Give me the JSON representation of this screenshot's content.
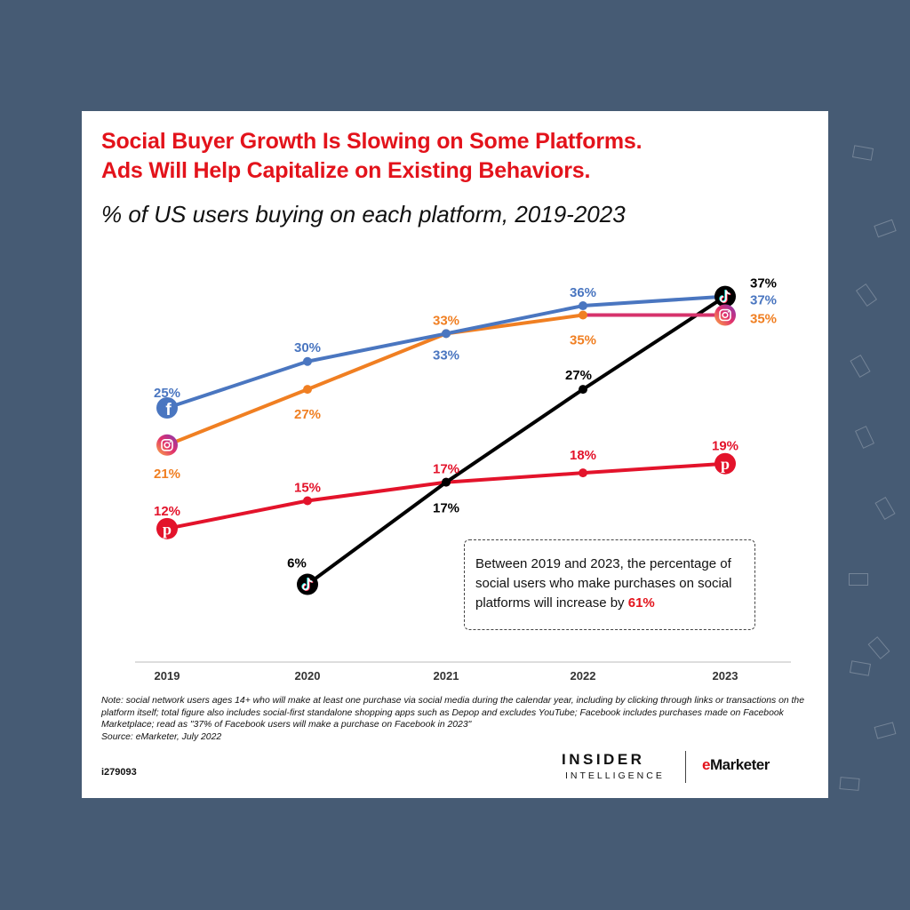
{
  "title_line1": "Social Buyer Growth Is Slowing on Some Platforms.",
  "title_line2": "Ads Will Help Capitalize on Existing Behaviors.",
  "subtitle": "% of US users buying on each platform, 2019-2023",
  "callout": {
    "text": "Between 2019 and 2023, the percentage of social users who make purchases on social platforms will increase by",
    "highlight": "61%"
  },
  "note": "Note: social network users ages 14+ who will make at least one purchase via social media during the calendar year, including by clicking through links or transactions on the platform itself; total figure also includes social-first standalone shopping apps such as Depop and excludes YouTube; Facebook includes purchases made on Facebook Marketplace; read as \"37% of Facebook users will make a purchase on Facebook in 2023\"",
  "source": "Source: eMarketer, July 2022",
  "chart_id": "i279093",
  "brand": {
    "insider": "INSIDER",
    "intelligence": "INTELLIGENCE",
    "emarketer_e": "e",
    "emarketer_rest": "Marketer"
  },
  "chart_data": {
    "type": "line",
    "categories": [
      "2019",
      "2020",
      "2021",
      "2022",
      "2023"
    ],
    "ylim": [
      0,
      40
    ],
    "series": [
      {
        "name": "Facebook",
        "icon": "facebook-icon",
        "color": "#4a76c0",
        "values": [
          25,
          30,
          33,
          36,
          37
        ],
        "labels": [
          "25%",
          "30%",
          "33%",
          "36%",
          "37%"
        ]
      },
      {
        "name": "Instagram",
        "icon": "instagram-icon",
        "color": "#f07f22",
        "color_end": "#d6336c",
        "values": [
          21,
          27,
          33,
          35,
          35
        ],
        "labels": [
          "21%",
          "27%",
          "33%",
          "35%",
          "35%"
        ]
      },
      {
        "name": "TikTok",
        "icon": "tiktok-icon",
        "color": "#000000",
        "values": [
          null,
          6,
          17,
          27,
          37
        ],
        "labels": [
          null,
          "6%",
          "17%",
          "27%",
          "37%"
        ]
      },
      {
        "name": "Pinterest",
        "icon": "pinterest-icon",
        "color": "#e3132b",
        "values": [
          12,
          15,
          17,
          18,
          19
        ],
        "labels": [
          "12%",
          "15%",
          "17%",
          "18%",
          "19%"
        ]
      }
    ]
  }
}
